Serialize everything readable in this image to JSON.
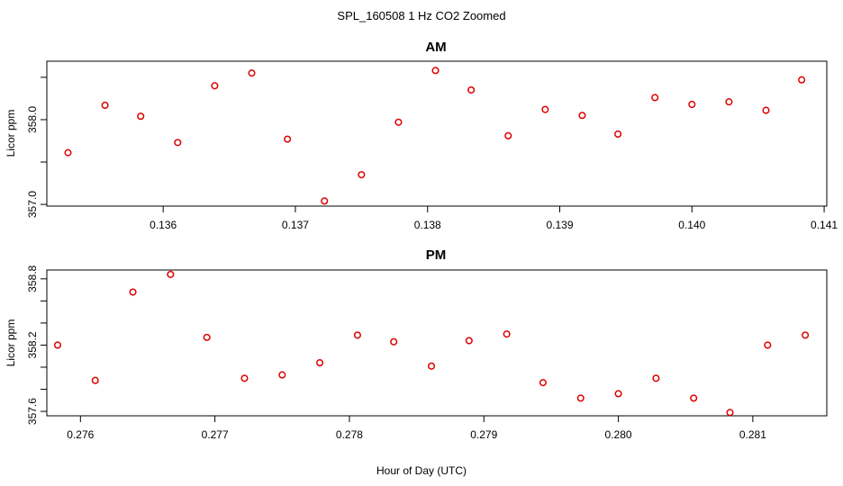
{
  "chart_data": {
    "suptitle": "SPL_160508  1 Hz CO2 Zoomed",
    "xlabel": "Hour of Day (UTC)",
    "colors": {
      "points": "#dd0000",
      "axes": "#000000",
      "background": "#ffffff"
    },
    "panels": [
      {
        "type": "scatter",
        "title": "AM",
        "ylabel": "Licor ppm",
        "xlim": [
          0.13512,
          0.14102
        ],
        "ylim": [
          356.98,
          358.69
        ],
        "xticks": [
          0.136,
          0.137,
          0.138,
          0.139,
          0.14,
          0.141
        ],
        "xtick_labels": [
          "0.136",
          "0.137",
          "0.138",
          "0.139",
          "0.140",
          "0.141"
        ],
        "yticks": [
          357.0,
          357.5,
          358.0,
          358.5
        ],
        "ytick_labels": [
          "357.0",
          "",
          "358.0",
          ""
        ],
        "points": [
          {
            "x": 0.13528,
            "y": 357.61
          },
          {
            "x": 0.13556,
            "y": 358.17
          },
          {
            "x": 0.13583,
            "y": 358.04
          },
          {
            "x": 0.13611,
            "y": 357.73
          },
          {
            "x": 0.13639,
            "y": 358.4
          },
          {
            "x": 0.13667,
            "y": 358.55
          },
          {
            "x": 0.13694,
            "y": 357.77
          },
          {
            "x": 0.13722,
            "y": 357.04
          },
          {
            "x": 0.1375,
            "y": 357.35
          },
          {
            "x": 0.13778,
            "y": 357.97
          },
          {
            "x": 0.13806,
            "y": 358.58
          },
          {
            "x": 0.13833,
            "y": 358.35
          },
          {
            "x": 0.13861,
            "y": 357.81
          },
          {
            "x": 0.13889,
            "y": 358.12
          },
          {
            "x": 0.13917,
            "y": 358.05
          },
          {
            "x": 0.13944,
            "y": 357.83
          },
          {
            "x": 0.13972,
            "y": 358.26
          },
          {
            "x": 0.14,
            "y": 358.18
          },
          {
            "x": 0.14028,
            "y": 358.21
          },
          {
            "x": 0.14056,
            "y": 358.11
          },
          {
            "x": 0.14083,
            "y": 358.47
          }
        ]
      },
      {
        "type": "scatter",
        "title": "PM",
        "ylabel": "Licor ppm",
        "xlim": [
          0.27575,
          0.28155
        ],
        "ylim": [
          357.56,
          358.88
        ],
        "xticks": [
          0.276,
          0.277,
          0.278,
          0.279,
          0.28,
          0.281
        ],
        "xtick_labels": [
          "0.276",
          "0.277",
          "0.278",
          "0.279",
          "0.280",
          "0.281"
        ],
        "yticks": [
          357.6,
          357.8,
          358.0,
          358.2,
          358.4,
          358.6,
          358.8
        ],
        "ytick_labels": [
          "357.6",
          "",
          "",
          "358.2",
          "",
          "",
          "358.8"
        ],
        "points": [
          {
            "x": 0.27583,
            "y": 358.2
          },
          {
            "x": 0.27611,
            "y": 357.88
          },
          {
            "x": 0.27639,
            "y": 358.68
          },
          {
            "x": 0.27667,
            "y": 358.84
          },
          {
            "x": 0.27694,
            "y": 358.27
          },
          {
            "x": 0.27722,
            "y": 357.9
          },
          {
            "x": 0.2775,
            "y": 357.93
          },
          {
            "x": 0.27778,
            "y": 358.04
          },
          {
            "x": 0.27806,
            "y": 358.29
          },
          {
            "x": 0.27833,
            "y": 358.23
          },
          {
            "x": 0.27861,
            "y": 358.01
          },
          {
            "x": 0.27889,
            "y": 358.24
          },
          {
            "x": 0.27917,
            "y": 358.3
          },
          {
            "x": 0.27944,
            "y": 357.86
          },
          {
            "x": 0.27972,
            "y": 357.72
          },
          {
            "x": 0.28,
            "y": 357.76
          },
          {
            "x": 0.28028,
            "y": 357.9
          },
          {
            "x": 0.28056,
            "y": 357.72
          },
          {
            "x": 0.28083,
            "y": 357.59
          },
          {
            "x": 0.28111,
            "y": 358.2
          },
          {
            "x": 0.28139,
            "y": 358.29
          }
        ]
      }
    ]
  }
}
